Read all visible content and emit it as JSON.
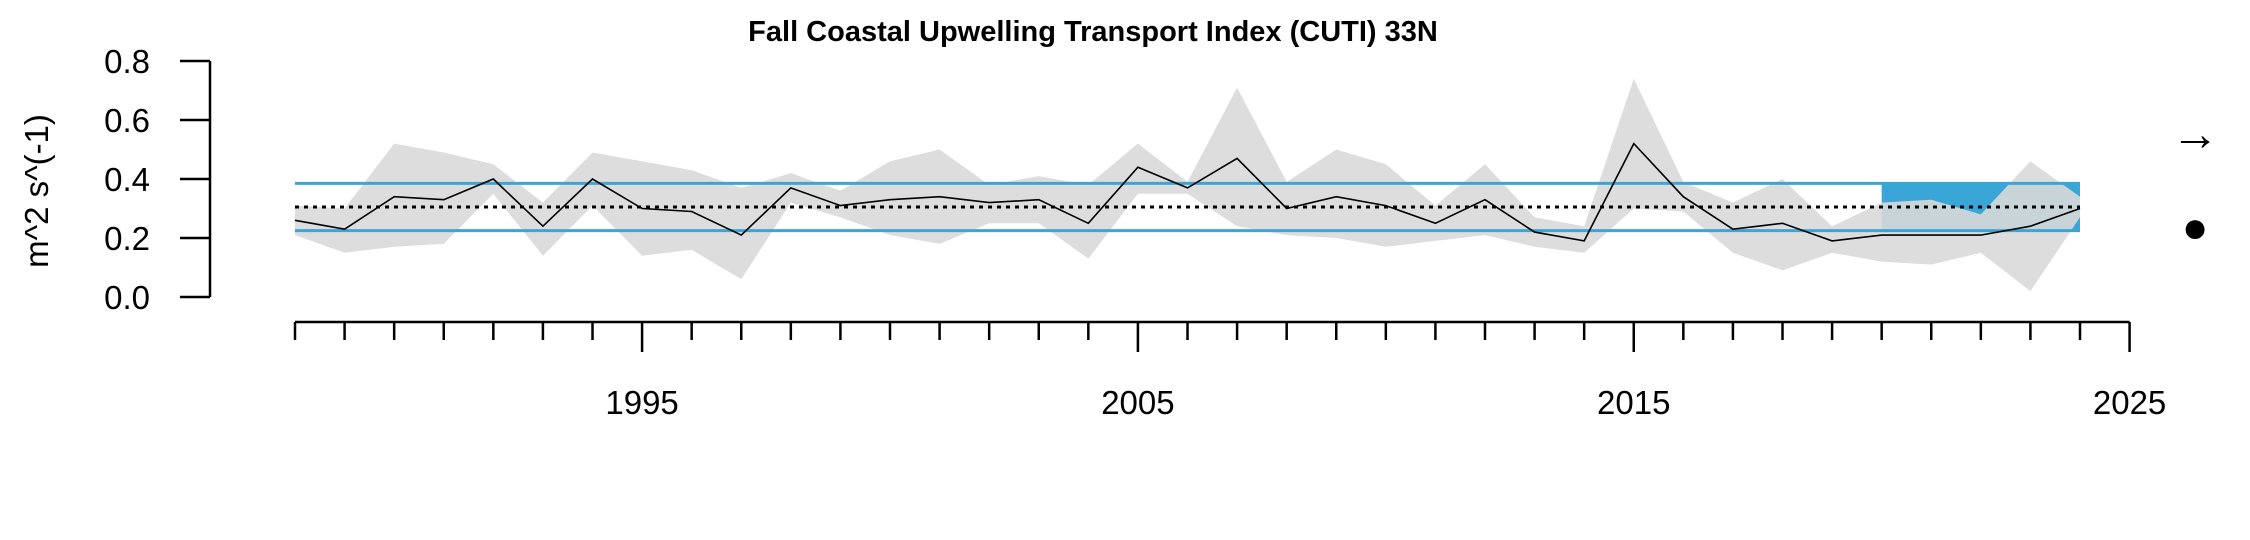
{
  "chart_data": {
    "type": "line",
    "title": "Fall Coastal Upwelling Transport Index (CUTI) 33N",
    "ylabel": "m^2 s^(-1)",
    "xlabel": "",
    "ylim": [
      0,
      0.8
    ],
    "xlim": [
      1988,
      2025
    ],
    "yticks": [
      0.0,
      0.2,
      0.4,
      0.6,
      0.8
    ],
    "ytick_labels": [
      "0.0",
      "0.2",
      "0.4",
      "0.6",
      "0.8"
    ],
    "xticks_labeled": [
      1995,
      2005,
      2015,
      2025
    ],
    "xtick_labels": [
      "1995",
      "2005",
      "2015",
      "2025"
    ],
    "x": [
      1988,
      1989,
      1990,
      1991,
      1992,
      1993,
      1994,
      1995,
      1996,
      1997,
      1998,
      1999,
      2000,
      2001,
      2002,
      2003,
      2004,
      2005,
      2006,
      2007,
      2008,
      2009,
      2010,
      2011,
      2012,
      2013,
      2014,
      2015,
      2016,
      2017,
      2018,
      2019,
      2020,
      2021,
      2022,
      2023,
      2024
    ],
    "series": [
      {
        "values": [
          0.26,
          0.23,
          0.34,
          0.33,
          0.4,
          0.24,
          0.4,
          0.3,
          0.29,
          0.21,
          0.37,
          0.31,
          0.33,
          0.34,
          0.32,
          0.33,
          0.25,
          0.44,
          0.37,
          0.47,
          0.3,
          0.34,
          0.31,
          0.25,
          0.33,
          0.22,
          0.19,
          0.52,
          0.34,
          0.23,
          0.25,
          0.19,
          0.21,
          0.21,
          0.21,
          0.24,
          0.3
        ],
        "upper": [
          0.31,
          0.3,
          0.52,
          0.49,
          0.45,
          0.32,
          0.49,
          0.46,
          0.43,
          0.37,
          0.42,
          0.36,
          0.46,
          0.5,
          0.38,
          0.41,
          0.38,
          0.52,
          0.39,
          0.71,
          0.39,
          0.5,
          0.45,
          0.31,
          0.45,
          0.27,
          0.24,
          0.74,
          0.39,
          0.32,
          0.4,
          0.24,
          0.32,
          0.33,
          0.28,
          0.46,
          0.34
        ],
        "lower": [
          0.21,
          0.15,
          0.17,
          0.18,
          0.35,
          0.14,
          0.31,
          0.14,
          0.16,
          0.06,
          0.32,
          0.27,
          0.21,
          0.18,
          0.25,
          0.25,
          0.13,
          0.35,
          0.35,
          0.24,
          0.21,
          0.2,
          0.17,
          0.19,
          0.21,
          0.17,
          0.15,
          0.3,
          0.29,
          0.15,
          0.09,
          0.15,
          0.12,
          0.11,
          0.15,
          0.02,
          0.27
        ],
        "color": "#000000",
        "band_color": "#d9d9d9"
      }
    ],
    "mean": 0.305,
    "sd_upper": 0.385,
    "sd_lower": 0.225,
    "recent_window": [
      2020,
      2024
    ],
    "recent_window_color": "#3aa6d8",
    "sd_line_color": "#3aa6d8",
    "mean_line_color": "#000000",
    "trend_arrow": "→",
    "status_symbol": "●"
  }
}
